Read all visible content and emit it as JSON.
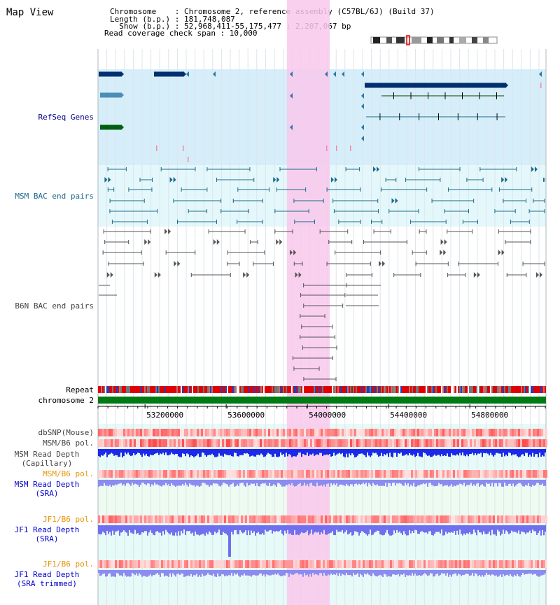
{
  "view_title": "Map View",
  "header": {
    "chromosome_line": "Chromosome    : Chromosome 2, reference assembly (C57BL/6J) (Build 37)",
    "length_line": "Length (b.p.) : 181,748,087",
    "show_line": "  Show (b.p.) : 52,968,411-55,175,477 : 2,207,067 bp",
    "coverage_line": "Read coverage check span : 10,000"
  },
  "region": {
    "start": 52968411,
    "end": 55175477,
    "highlight_start": 53899000,
    "highlight_end": 54110000
  },
  "colors": {
    "highlight": "#f9c8ec",
    "refseq_bg": "#d6eef9",
    "msm_bac_bg": "#e4f8fb",
    "lower_bg": "#e6faf8",
    "sra_bg": "#eefbf0",
    "chrom_bar": "#007a12",
    "refseq_label": "#00008b",
    "msm_label": "#1c6a8a",
    "b6n_label": "#444444",
    "orange_label": "#e6940a",
    "blue_label": "#0000cc"
  },
  "tracks": {
    "refseq": "RefSeq Genes",
    "msm_bac": "MSM BAC end pairs",
    "b6n_bac": "B6N BAC end pairs",
    "repeat": "Repeat",
    "chromosome": "chromosome 2",
    "dbsnp": "dbSNP(Mouse)",
    "msm_b6_pol_1": "MSM/B6 pol.",
    "msm_read_depth_cap_1": "MSM Read Depth",
    "msm_read_depth_cap_2": "(Capillary)",
    "msm_b6_pol_2": "MSM/B6 pol.",
    "msm_read_depth_sra_1": "MSM Read Depth",
    "msm_read_depth_sra_2": "(SRA)",
    "jf1_b6_pol_1": "JF1/B6 pol.",
    "jf1_read_depth_sra_1": "JF1 Read Depth",
    "jf1_read_depth_sra_2": "(SRA)",
    "jf1_b6_pol_2": "JF1/B6 pol.",
    "jf1_read_depth_trim_1": "JF1 Read Depth",
    "jf1_read_depth_trim_2": "(SRA trimmed)"
  },
  "axis": {
    "ticks": [
      53200000,
      53600000,
      54000000,
      54400000,
      54800000
    ],
    "tick_labels": [
      "53200000",
      "53600000",
      "54000000",
      "54400000",
      "54800000"
    ]
  }
}
